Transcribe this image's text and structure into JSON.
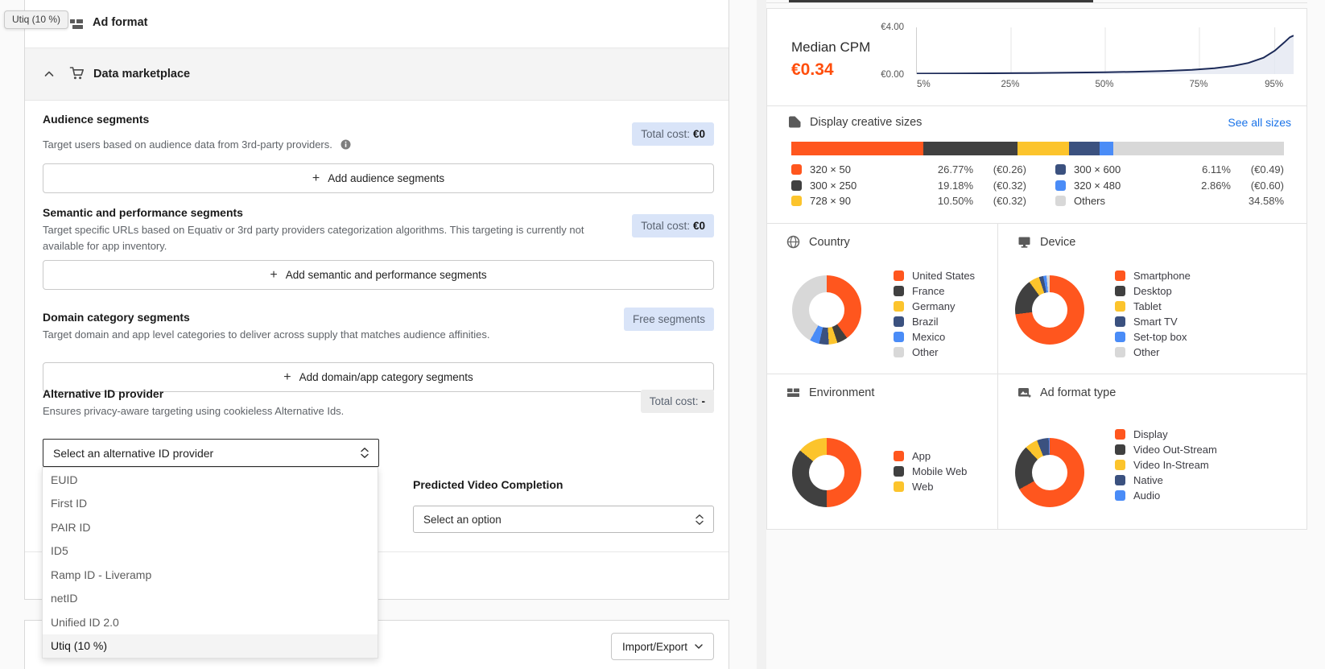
{
  "colors": {
    "accent_orange": "#ff561e",
    "cpm_orange": "#ff4e0c",
    "dark_gray": "#404040",
    "yellow": "#fcc42c",
    "navy": "#3b517f",
    "blue": "#4a8cf7",
    "light_gray": "#d8d8d8",
    "line_navy": "#1c2a58",
    "badge_blue_bg": "#d9e4f8",
    "link_blue": "#1a73e8"
  },
  "tooltip": {
    "label": "Utiq (10 %)"
  },
  "left_panel": {
    "ad_format": {
      "label": "Ad format"
    },
    "data_marketplace": {
      "label": "Data marketplace"
    },
    "audience": {
      "title": "Audience segments",
      "description": "Target users based on audience data from 3rd-party providers.",
      "badge_label": "Total cost:",
      "badge_value": "€0",
      "add_label": "Add audience segments",
      "plus": "+"
    },
    "semantic": {
      "title": "Semantic and performance segments",
      "description": "Target specific URLs based on Equativ or 3rd party providers categorization algorithms. This targeting is currently not available for app inventory.",
      "badge_label": "Total cost:",
      "badge_value": "€0",
      "add_label": "Add semantic and performance segments",
      "plus": "+"
    },
    "domain": {
      "title": "Domain category segments",
      "description": "Target domain and app level categories to deliver across supply that matches audience affinities.",
      "badge_label": "Free segments",
      "add_label": "Add domain/app category segments",
      "plus": "+"
    },
    "alt_id": {
      "title": "Alternative ID provider",
      "description": "Ensures privacy-aware targeting using cookieless Alternative Ids.",
      "badge_label": "Total cost:",
      "badge_value": "-",
      "select_placeholder": "Select an alternative ID provider",
      "options": [
        "EUID",
        "First ID",
        "PAIR ID",
        "ID5",
        "Ramp ID - Liveramp",
        "netID",
        "Unified ID 2.0",
        "Utiq (10 %)"
      ],
      "highlighted_option": "Utiq (10 %)"
    },
    "pvc": {
      "title": "Predicted Video Completion",
      "select_placeholder": "Select an option"
    },
    "import_export": {
      "label": "Import/Export"
    }
  },
  "chart_data": [
    {
      "id": "median_cpm",
      "type": "area",
      "title": "Median CPM",
      "value_label": "€0.34",
      "ylim": [
        0,
        4
      ],
      "ytick_top": "€4.00",
      "ytick_bottom": "€0.00",
      "x_ticks": [
        {
          "label": "5%",
          "f": 0.02,
          "grid": false
        },
        {
          "label": "25%",
          "f": 0.25,
          "grid": true
        },
        {
          "label": "50%",
          "f": 0.5,
          "grid": true
        },
        {
          "label": "75%",
          "f": 0.75,
          "grid": true
        },
        {
          "label": "95%",
          "f": 0.95,
          "grid": true
        }
      ],
      "points": [
        [
          0,
          0.04
        ],
        [
          0.1,
          0.05
        ],
        [
          0.2,
          0.07
        ],
        [
          0.3,
          0.09
        ],
        [
          0.4,
          0.12
        ],
        [
          0.5,
          0.16
        ],
        [
          0.58,
          0.2
        ],
        [
          0.66,
          0.27
        ],
        [
          0.73,
          0.36
        ],
        [
          0.79,
          0.5
        ],
        [
          0.84,
          0.7
        ],
        [
          0.88,
          0.95
        ],
        [
          0.92,
          1.4
        ],
        [
          0.95,
          2.0
        ],
        [
          0.975,
          2.7
        ],
        [
          0.99,
          3.15
        ],
        [
          1,
          3.3
        ]
      ],
      "line_color": "#1c2a58",
      "fill_color": "#e3e7f1"
    },
    {
      "id": "creative_sizes",
      "type": "bar-stacked",
      "title": "Display creative sizes",
      "link": "See all sizes",
      "segments": [
        {
          "label": "320 × 50",
          "value": 26.77,
          "pct": "26.77%",
          "price": "(€0.26)",
          "color": "#ff561e"
        },
        {
          "label": "300 × 250",
          "value": 19.18,
          "pct": "19.18%",
          "price": "(€0.32)",
          "color": "#404040"
        },
        {
          "label": "728 × 90",
          "value": 10.5,
          "pct": "10.50%",
          "price": "(€0.32)",
          "color": "#fcc42c"
        },
        {
          "label": "300 × 600",
          "value": 6.11,
          "pct": "6.11%",
          "price": "(€0.49)",
          "color": "#3b517f"
        },
        {
          "label": "320 × 480",
          "value": 2.86,
          "pct": "2.86%",
          "price": "(€0.60)",
          "color": "#4a8cf7"
        },
        {
          "label": "Others",
          "value": 34.58,
          "pct": "34.58%",
          "price": "",
          "color": "#d8d8d8"
        }
      ]
    },
    {
      "id": "country",
      "type": "pie",
      "title": "Country",
      "slices": [
        {
          "label": "United States",
          "value": 40,
          "color": "#ff561e"
        },
        {
          "label": "France",
          "value": 5,
          "color": "#404040"
        },
        {
          "label": "Germany",
          "value": 4,
          "color": "#fcc42c"
        },
        {
          "label": "Brazil",
          "value": 4.5,
          "color": "#3b517f"
        },
        {
          "label": "Mexico",
          "value": 4.5,
          "color": "#4a8cf7"
        },
        {
          "label": "Other",
          "value": 42,
          "color": "#d8d8d8"
        }
      ]
    },
    {
      "id": "device",
      "type": "pie",
      "title": "Device",
      "slices": [
        {
          "label": "Smartphone",
          "value": 73,
          "color": "#ff561e"
        },
        {
          "label": "Desktop",
          "value": 17,
          "color": "#404040"
        },
        {
          "label": "Tablet",
          "value": 5,
          "color": "#fcc42c"
        },
        {
          "label": "Smart TV",
          "value": 2,
          "color": "#3b517f"
        },
        {
          "label": "Set-top box",
          "value": 1.5,
          "color": "#4a8cf7"
        },
        {
          "label": "Other",
          "value": 1.5,
          "color": "#d8d8d8"
        }
      ]
    },
    {
      "id": "environment",
      "type": "pie",
      "title": "Environment",
      "slices": [
        {
          "label": "App",
          "value": 50,
          "color": "#ff561e"
        },
        {
          "label": "Mobile Web",
          "value": 36,
          "color": "#404040"
        },
        {
          "label": "Web",
          "value": 14,
          "color": "#fcc42c"
        }
      ]
    },
    {
      "id": "ad_format_type",
      "type": "pie",
      "title": "Ad format type",
      "slices": [
        {
          "label": "Display",
          "value": 67,
          "color": "#ff561e"
        },
        {
          "label": "Video Out-Stream",
          "value": 21,
          "color": "#404040"
        },
        {
          "label": "Video In-Stream",
          "value": 6,
          "color": "#fcc42c"
        },
        {
          "label": "Native",
          "value": 5.5,
          "color": "#3b517f"
        },
        {
          "label": "Audio",
          "value": 0.5,
          "color": "#4a8cf7"
        }
      ]
    }
  ]
}
